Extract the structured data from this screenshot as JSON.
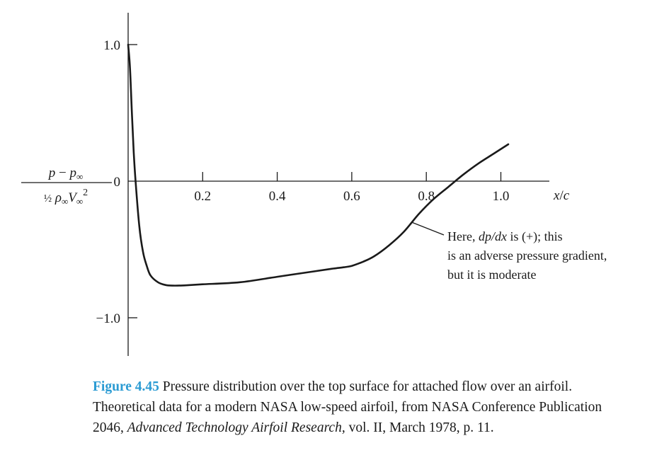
{
  "chart_data": {
    "type": "line",
    "title": "",
    "xlabel": "x/c",
    "ylabel": {
      "numerator": "p − p∞",
      "denominator": "½ ρ∞V∞²"
    },
    "xlim": [
      0,
      1.05
    ],
    "ylim": [
      -1.25,
      1.25
    ],
    "x_ticks": [
      0.2,
      0.4,
      0.6,
      0.8,
      1.0
    ],
    "x_tick_labels": [
      "0.2",
      "0.4",
      "0.6",
      "0.8",
      "1.0"
    ],
    "y_ticks": [
      1.0,
      0,
      -1.0
    ],
    "y_tick_labels": [
      "1.0",
      "0",
      "−1.0"
    ],
    "grid": false,
    "series": [
      {
        "x": [
          0.0,
          0.005,
          0.01,
          0.015,
          0.02,
          0.03,
          0.04,
          0.05,
          0.06,
          0.08,
          0.1,
          0.12,
          0.15,
          0.2,
          0.3,
          0.4,
          0.5,
          0.55,
          0.58,
          0.6,
          0.63,
          0.66,
          0.7,
          0.74,
          0.78,
          0.82,
          0.86,
          0.9,
          0.94,
          0.98,
          1.02
        ],
        "y": [
          1.0,
          0.83,
          0.5,
          0.21,
          0.0,
          -0.33,
          -0.52,
          -0.62,
          -0.69,
          -0.74,
          -0.76,
          -0.765,
          -0.763,
          -0.755,
          -0.74,
          -0.7,
          -0.66,
          -0.64,
          -0.63,
          -0.62,
          -0.59,
          -0.55,
          -0.47,
          -0.37,
          -0.24,
          -0.13,
          -0.04,
          0.05,
          0.13,
          0.2,
          0.27
        ]
      }
    ],
    "annotation": {
      "lines": [
        [
          "Here, ",
          "dp/dx",
          " is (+); this"
        ],
        [
          "is an adverse pressure gradient,"
        ],
        [
          "but it is moderate"
        ]
      ],
      "points_to": {
        "x": 0.76,
        "y": -0.3
      }
    }
  },
  "caption": {
    "label": "Figure 4.45",
    "text_1": " Pressure distribution over the top surface for attached flow over an airfoil. Theoretical data for a modern NASA low-speed airfoil, from NASA Conference Publication 2046, ",
    "title_italic": "Advanced Technology Airfoil Research,",
    "text_2": " vol. II, March 1978, p. 11."
  }
}
